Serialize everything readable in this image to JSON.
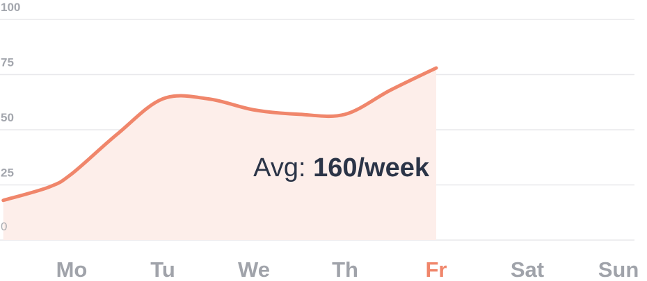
{
  "chart_data": {
    "type": "area",
    "title": "",
    "xlabel": "",
    "ylabel": "",
    "categories": [
      "Mo",
      "Tu",
      "We",
      "Th",
      "Fr",
      "Sat",
      "Sun"
    ],
    "highlighted_category": "Fr",
    "y_ticks": [
      "0",
      "25",
      "50",
      "75",
      "100"
    ],
    "ylim": [
      0,
      100
    ],
    "grid": true,
    "series": [
      {
        "x": [
          -0.75,
          -0.25,
          0.0,
          0.5,
          1.0,
          1.5,
          2.0,
          2.5,
          3.0,
          3.5,
          4.0
        ],
        "values": [
          18,
          24,
          30,
          48,
          64,
          64,
          59,
          57,
          57,
          68,
          78
        ]
      }
    ],
    "annotation": {
      "prefix": "Avg: ",
      "value": "160/week"
    },
    "colors": {
      "line": "#f0866b",
      "fill": "#fdeeea",
      "grid": "#e8e8ec",
      "axis_text": "#a3a6ad",
      "highlight": "#f0866b",
      "annotation": "#2b3447"
    }
  }
}
